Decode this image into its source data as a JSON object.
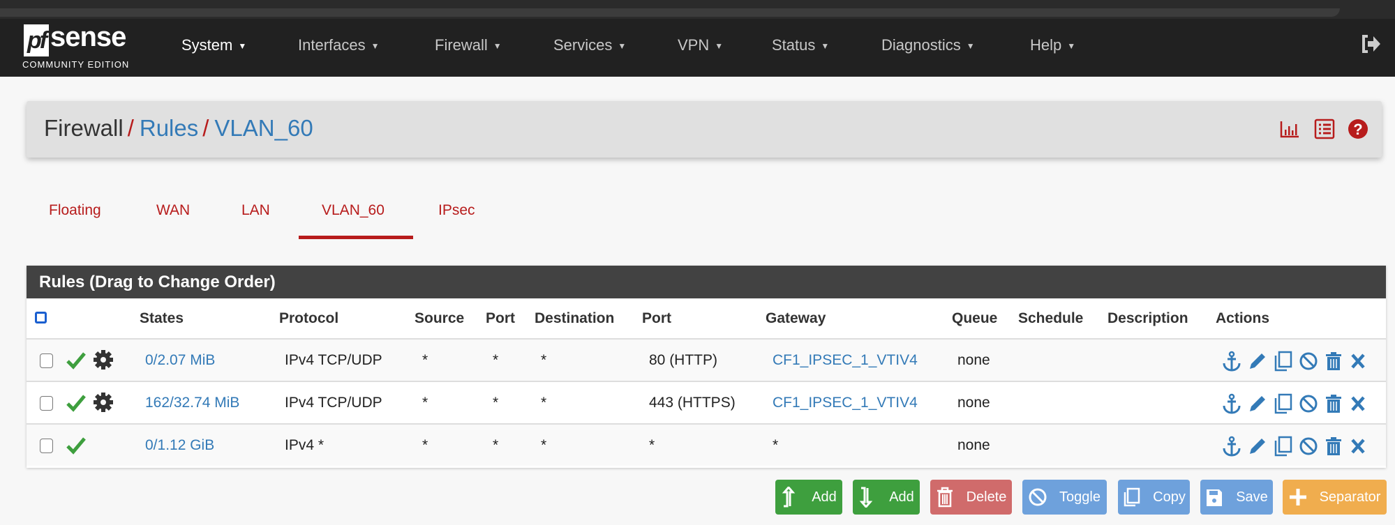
{
  "brand": {
    "logo_pf": "pf",
    "logo_sense": "sense",
    "edition": "COMMUNITY EDITION"
  },
  "nav": {
    "items": [
      "System",
      "Interfaces",
      "Firewall",
      "Services",
      "VPN",
      "Status",
      "Diagnostics",
      "Help"
    ],
    "active": "System",
    "logout_icon": "sign-out-icon"
  },
  "breadcrumb": {
    "root": "Firewall",
    "sep": "/",
    "level2": "Rules",
    "level3": "VLAN_60",
    "icons": [
      "bar-chart-icon",
      "list-icon",
      "help-icon"
    ]
  },
  "tabs": {
    "items": [
      "Floating",
      "WAN",
      "LAN",
      "VLAN_60",
      "IPsec"
    ],
    "active": "VLAN_60"
  },
  "rules": {
    "title": "Rules (Drag to Change Order)",
    "columns": [
      "",
      "States",
      "Protocol",
      "Source",
      "Port",
      "Destination",
      "Port",
      "Gateway",
      "Queue",
      "Schedule",
      "Description",
      "Actions"
    ],
    "rows": [
      {
        "states": "0/2.07 MiB",
        "protocol": "IPv4 TCP/UDP",
        "source": "*",
        "sport": "*",
        "destination": "*",
        "dport": "80 (HTTP)",
        "gateway": "CF1_IPSEC_1_VTIV4",
        "queue": "none",
        "schedule": "",
        "description": "",
        "advanced": true
      },
      {
        "states": "162/32.74 MiB",
        "protocol": "IPv4 TCP/UDP",
        "source": "*",
        "sport": "*",
        "destination": "*",
        "dport": "443 (HTTPS)",
        "gateway": "CF1_IPSEC_1_VTIV4",
        "queue": "none",
        "schedule": "",
        "description": "",
        "advanced": true
      },
      {
        "states": "0/1.12 GiB",
        "protocol": "IPv4 *",
        "source": "*",
        "sport": "*",
        "destination": "*",
        "dport": "*",
        "gateway": "*",
        "queue": "none",
        "schedule": "",
        "description": "",
        "advanced": false
      }
    ],
    "action_icons": [
      "anchor-icon",
      "pencil-icon",
      "copy-icon",
      "ban-icon",
      "trash-icon",
      "times-icon"
    ]
  },
  "buttons": {
    "add_top": "Add",
    "add_bottom": "Add",
    "delete": "Delete",
    "toggle": "Toggle",
    "copy": "Copy",
    "save": "Save",
    "separator": "Separator"
  },
  "colors": {
    "accent": "#b71c1c",
    "link": "#337ab7",
    "success": "#3e9f3e",
    "danger": "#d06b6b",
    "info": "#6ea1dc",
    "warning": "#f0ad4e",
    "navbar": "#212121"
  }
}
